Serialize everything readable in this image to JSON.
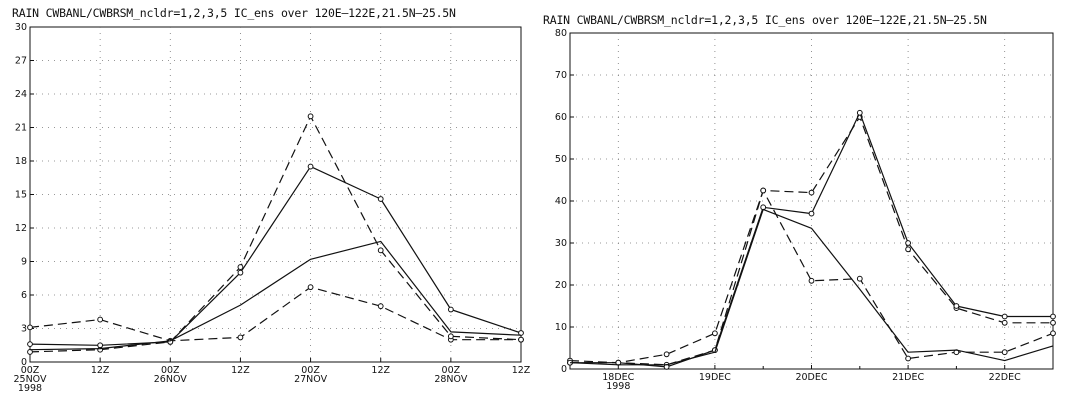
{
  "charts": [
    {
      "title": "RAIN  CWBANL/CWBRSM_ncldr=1,2,3,5 IC_ens  over  120E–122E,21.5N–25.5N",
      "chart_data": {
        "type": "line",
        "x": [
          "00Z 25NOV 1998",
          "12Z",
          "00Z 26NOV",
          "12Z",
          "00Z 27NOV",
          "12Z",
          "00Z 28NOV",
          "12Z"
        ],
        "x_tick_labels": [
          [
            "00Z",
            "25NOV",
            "1998"
          ],
          [
            "12Z"
          ],
          [
            "00Z",
            "26NOV"
          ],
          [
            "12Z"
          ],
          [
            "00Z",
            "27NOV"
          ],
          [
            "12Z"
          ],
          [
            "00Z",
            "28NOV"
          ],
          [
            "12Z"
          ]
        ],
        "ylim": [
          0,
          30
        ],
        "yticks": [
          0,
          3,
          6,
          9,
          12,
          15,
          18,
          21,
          24,
          27,
          30
        ],
        "grid": "dotted",
        "series": [
          {
            "style": "dashed",
            "marker": "circle",
            "values": [
              3.1,
              3.8,
              1.9,
              2.2,
              6.7,
              5.0,
              2.0,
              2.0
            ]
          },
          {
            "style": "dashed",
            "marker": "circle",
            "values": [
              0.9,
              1.1,
              1.8,
              8.5,
              22.0,
              10.0,
              2.3,
              2.0
            ]
          },
          {
            "style": "solid",
            "marker": "circle",
            "values": [
              1.6,
              1.5,
              1.8,
              8.0,
              17.5,
              14.6,
              4.7,
              2.6
            ]
          },
          {
            "style": "solid",
            "marker": "none",
            "values": [
              1.1,
              1.2,
              1.9,
              5.1,
              9.2,
              10.8,
              2.7,
              2.4
            ]
          }
        ]
      }
    },
    {
      "title": "RAIN  CWBANL/CWBRSM_ncldr=1,2,3,5 IC_ens  over  120E–122E,21.5N–25.5N",
      "chart_data": {
        "type": "line",
        "x": [
          0,
          0.5,
          1,
          1.5,
          2,
          2.5,
          3,
          3.5,
          4,
          4.5,
          5
        ],
        "x_tick_labels": [
          [
            "18DEC",
            "1998"
          ],
          [
            "19DEC"
          ],
          [
            "20DEC"
          ],
          [
            "21DEC"
          ],
          [
            "22DEC"
          ]
        ],
        "x_tick_positions": [
          0.5,
          1.5,
          2.5,
          3.5,
          4.5
        ],
        "ylim": [
          0,
          80
        ],
        "yticks": [
          0,
          10,
          20,
          30,
          40,
          50,
          60,
          70,
          80
        ],
        "grid": "dotted",
        "series": [
          {
            "style": "dashed",
            "marker": "circle",
            "values": [
              1.5,
              1.5,
              3.5,
              8.5,
              42.5,
              42.0,
              60.0,
              28.5,
              14.5,
              11.0,
              11.0
            ]
          },
          {
            "style": "dashed",
            "marker": "circle",
            "values": [
              2.0,
              1.5,
              1.0,
              4.5,
              42.5,
              21.0,
              21.5,
              2.5,
              4.0,
              4.0,
              8.5
            ]
          },
          {
            "style": "solid",
            "marker": "circle",
            "values": [
              1.5,
              1.5,
              0.5,
              4.5,
              38.5,
              37.0,
              61.0,
              30.0,
              15.0,
              12.5,
              12.5
            ]
          },
          {
            "style": "solid",
            "marker": "none",
            "values": [
              1.5,
              1.0,
              1.0,
              4.0,
              38.0,
              33.5,
              19.0,
              4.0,
              4.5,
              2.0,
              5.5
            ]
          }
        ]
      }
    }
  ]
}
